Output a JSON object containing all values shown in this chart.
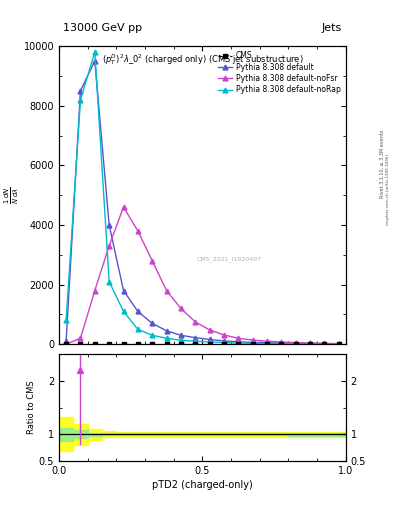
{
  "title_top": "13000 GeV pp",
  "title_right": "Jets",
  "plot_title": "$(p_T^D)^2\\lambda\\_0^2$ (charged only) (CMS jet substructure)",
  "xlabel": "pTD2 (charged-only)",
  "ylabel_ratio": "Ratio to CMS",
  "watermark": "CMS_2021_I1920497",
  "right_label": "Rivet 3.1.10, ≥ 3.3M events",
  "right_label2": "mcplots.cern.ch [arXiv:1306.3436]",
  "default_x": [
    0.025,
    0.075,
    0.125,
    0.175,
    0.225,
    0.275,
    0.325,
    0.375,
    0.425,
    0.475,
    0.525,
    0.575,
    0.625,
    0.675,
    0.725,
    0.775,
    0.825,
    0.875,
    0.925,
    0.975
  ],
  "default_y": [
    100,
    8500,
    9500,
    4000,
    1800,
    1100,
    700,
    450,
    300,
    220,
    160,
    110,
    80,
    60,
    50,
    40,
    30,
    25,
    20,
    15
  ],
  "noFsr_x": [
    0.025,
    0.075,
    0.125,
    0.175,
    0.225,
    0.275,
    0.325,
    0.375,
    0.425,
    0.475,
    0.525,
    0.575,
    0.625,
    0.675,
    0.725,
    0.775,
    0.825,
    0.875,
    0.925,
    0.975
  ],
  "noFsr_y": [
    0,
    200,
    1800,
    3300,
    4600,
    3800,
    2800,
    1800,
    1200,
    750,
    480,
    310,
    200,
    140,
    100,
    75,
    55,
    40,
    30,
    20
  ],
  "noRap_x": [
    0.025,
    0.075,
    0.125,
    0.175,
    0.225,
    0.275,
    0.325,
    0.375,
    0.425,
    0.475,
    0.525,
    0.575,
    0.625,
    0.675,
    0.725,
    0.775,
    0.825,
    0.875,
    0.925,
    0.975
  ],
  "noRap_y": [
    800,
    8200,
    9800,
    2100,
    1100,
    500,
    300,
    200,
    130,
    100,
    75,
    55,
    40,
    30,
    25,
    20,
    15,
    12,
    10,
    8
  ],
  "cms_x": [
    0.025,
    0.075,
    0.125,
    0.175,
    0.225,
    0.275,
    0.325,
    0.375,
    0.425,
    0.475,
    0.525,
    0.575,
    0.625,
    0.675,
    0.725,
    0.775,
    0.825,
    0.875,
    0.925,
    0.975
  ],
  "cms_y": [
    0,
    0,
    0,
    0,
    0,
    0,
    0,
    0,
    0,
    0,
    0,
    0,
    0,
    0,
    0,
    0,
    0,
    0,
    0,
    0
  ],
  "color_default": "#5555cc",
  "color_noFsr": "#cc44cc",
  "color_noRap": "#00bbcc",
  "color_cms": "black",
  "ylim_main": [
    0,
    10000
  ],
  "xlim": [
    0,
    1
  ],
  "ylim_ratio": [
    0.5,
    2.5
  ],
  "green_band_x": [
    0.0,
    0.05,
    0.1,
    0.15,
    0.2,
    0.25,
    0.3,
    0.35,
    0.4,
    0.45,
    0.5,
    0.55,
    0.6,
    0.65,
    0.7,
    0.75,
    0.8,
    0.85,
    0.9,
    0.95,
    1.0
  ],
  "green_band_lo": [
    0.88,
    0.93,
    0.97,
    0.98,
    0.98,
    0.98,
    0.98,
    0.98,
    0.98,
    0.98,
    0.98,
    0.98,
    0.98,
    0.98,
    0.98,
    0.98,
    0.97,
    0.97,
    0.97,
    0.97,
    0.97
  ],
  "green_band_hi": [
    1.12,
    1.07,
    1.03,
    1.02,
    1.02,
    1.02,
    1.02,
    1.02,
    1.02,
    1.02,
    1.02,
    1.02,
    1.02,
    1.02,
    1.02,
    1.02,
    1.03,
    1.03,
    1.03,
    1.03,
    1.08
  ],
  "yellow_band_lo": [
    0.68,
    0.8,
    0.9,
    0.94,
    0.95,
    0.95,
    0.95,
    0.95,
    0.95,
    0.95,
    0.95,
    0.95,
    0.95,
    0.95,
    0.95,
    0.95,
    0.95,
    0.95,
    0.95,
    0.95,
    0.9
  ],
  "yellow_band_hi": [
    1.32,
    1.2,
    1.1,
    1.06,
    1.05,
    1.05,
    1.05,
    1.05,
    1.05,
    1.05,
    1.05,
    1.05,
    1.05,
    1.05,
    1.05,
    1.05,
    1.05,
    1.05,
    1.05,
    1.05,
    1.15
  ],
  "ratio_noFsr_x": [
    0.075
  ],
  "ratio_noFsr_y": [
    2.2
  ]
}
